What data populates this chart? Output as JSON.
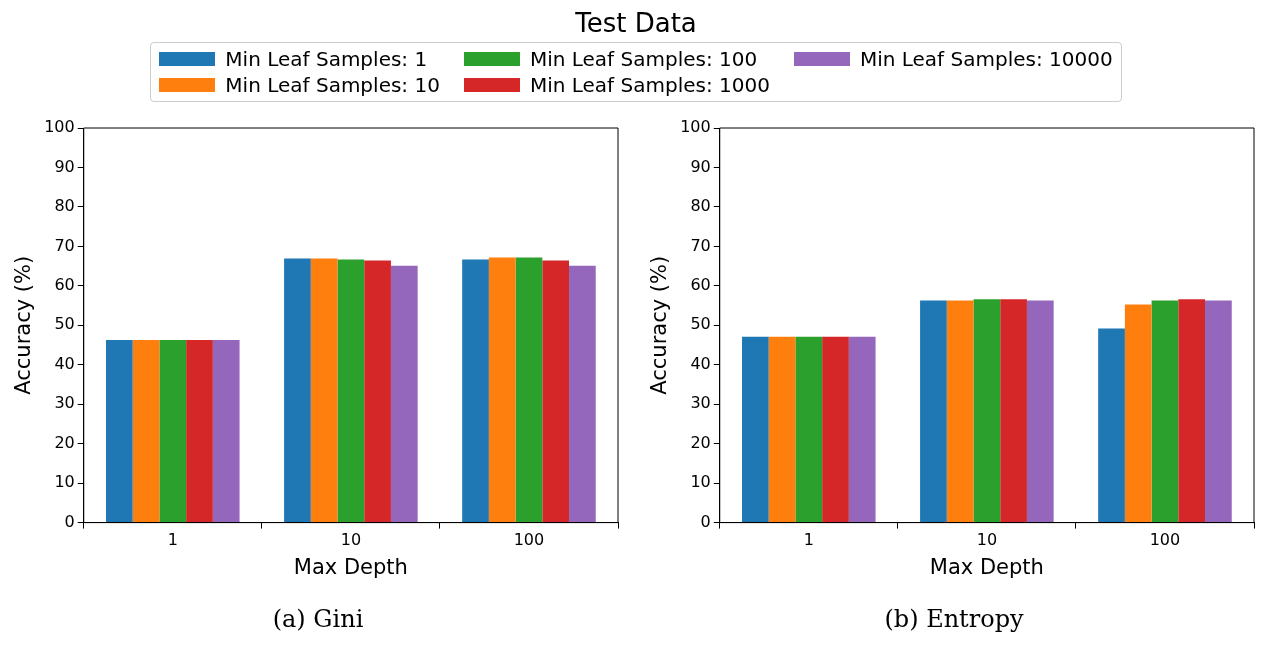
{
  "chart_data": [
    {
      "type": "bar",
      "title": "Test Data",
      "legend": "top",
      "xlabel": "Max Depth",
      "ylabel": "Accuracy (%)",
      "annotations": [
        "(a) Gini"
      ],
      "categories": [
        "1",
        "10",
        "100"
      ],
      "ylim": [
        0,
        100
      ],
      "yticks": [
        0,
        10,
        20,
        30,
        40,
        50,
        60,
        70,
        80,
        90,
        100
      ],
      "series": [
        {
          "name": "Min Leaf Samples: 1",
          "color": "#1f77b4",
          "values": [
            46.3,
            66.9,
            66.7
          ]
        },
        {
          "name": "Min Leaf Samples: 10",
          "color": "#ff7f0e",
          "values": [
            46.3,
            66.9,
            67.2
          ]
        },
        {
          "name": "Min Leaf Samples: 100",
          "color": "#2ca02c",
          "values": [
            46.3,
            66.7,
            67.2
          ]
        },
        {
          "name": "Min Leaf Samples: 1000",
          "color": "#d62728",
          "values": [
            46.3,
            66.4,
            66.4
          ]
        },
        {
          "name": "Min Leaf Samples: 10000",
          "color": "#9467bd",
          "values": [
            46.3,
            65.1,
            65.1
          ]
        }
      ]
    },
    {
      "type": "bar",
      "xlabel": "Max Depth",
      "ylabel": "Accuracy (%)",
      "annotations": [
        "(b) Entropy"
      ],
      "categories": [
        "1",
        "10",
        "100"
      ],
      "ylim": [
        0,
        100
      ],
      "yticks": [
        0,
        10,
        20,
        30,
        40,
        50,
        60,
        70,
        80,
        90,
        100
      ],
      "series": [
        {
          "color": "#1f77b4",
          "values": [
            47.1,
            56.3,
            49.2
          ]
        },
        {
          "color": "#ff7f0e",
          "values": [
            47.1,
            56.3,
            55.3
          ]
        },
        {
          "color": "#2ca02c",
          "values": [
            47.1,
            56.6,
            56.3
          ]
        },
        {
          "color": "#d62728",
          "values": [
            47.1,
            56.6,
            56.6
          ]
        },
        {
          "color": "#9467bd",
          "values": [
            47.1,
            56.3,
            56.3
          ]
        }
      ]
    }
  ]
}
